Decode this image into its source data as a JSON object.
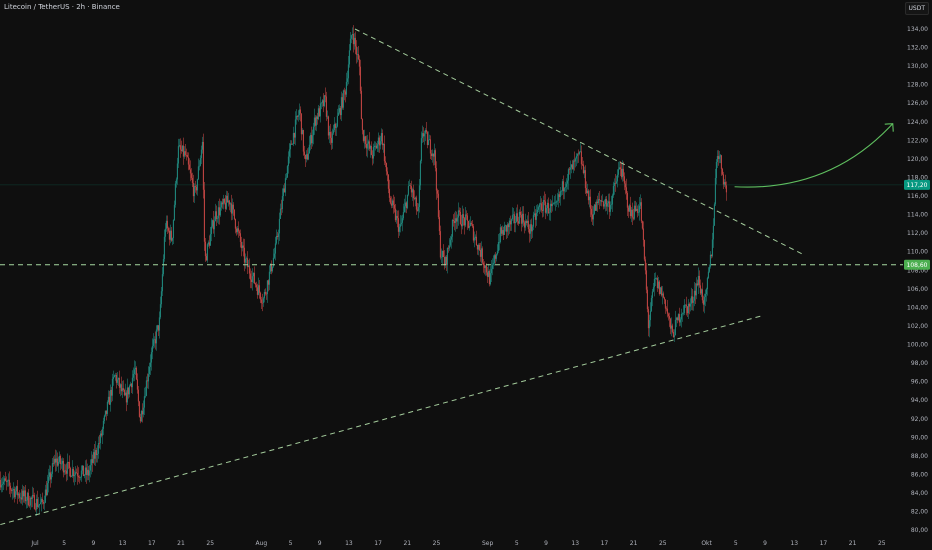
{
  "header": {
    "title": "Litecoin / TetherUS · 2h · Binance",
    "currency": "USDT"
  },
  "chart_data": {
    "type": "candlestick",
    "symbol": "Litecoin / TetherUS",
    "interval": "2h",
    "exchange": "Binance",
    "ylim": [
      79,
      135
    ],
    "y_ticks": [
      "80,00",
      "82,00",
      "84,00",
      "86,00",
      "88,00",
      "90,00",
      "92,00",
      "94,00",
      "96,00",
      "98,00",
      "100,00",
      "102,00",
      "104,00",
      "106,00",
      "108,00",
      "110,00",
      "112,00",
      "114,00",
      "116,00",
      "118,00",
      "120,00",
      "122,00",
      "124,00",
      "126,00",
      "128,00",
      "130,00",
      "132,00",
      "134,00"
    ],
    "x_ticks": [
      "Jul",
      "5",
      "9",
      "13",
      "17",
      "21",
      "25",
      "Aug",
      "5",
      "9",
      "13",
      "17",
      "21",
      "25",
      "Sep",
      "5",
      "9",
      "13",
      "17",
      "21",
      "25",
      "Okt",
      "5",
      "9",
      "13",
      "17",
      "21",
      "25"
    ],
    "grid": false,
    "colors": {
      "up": "#26a69a",
      "down": "#ef5350",
      "background": "#0f0f0f",
      "last_price": "#089981",
      "level": "#4caf50",
      "arrow": "#5fbf5f"
    },
    "last_price": {
      "value": 117.2,
      "label": "117,20"
    },
    "price_path": [
      {
        "t": "Jun 26 06:00",
        "p": 85.4
      },
      {
        "t": "Jun 28 22:00",
        "p": 83.8
      },
      {
        "t": "Jul 1 22:00",
        "p": 82.7
      },
      {
        "t": "Jul 3 18:00",
        "p": 87.6
      },
      {
        "t": "Jul 5 18:00",
        "p": 86.5
      },
      {
        "t": "Jul 8 06:00",
        "p": 86.0
      },
      {
        "t": "Jul 9 22:00",
        "p": 89.7
      },
      {
        "t": "Jul 11 22:00",
        "p": 96.7
      },
      {
        "t": "Jul 13 08:00",
        "p": 94.0
      },
      {
        "t": "Jul 14 16:00",
        "p": 97.3
      },
      {
        "t": "Jul 15 10:00",
        "p": 91.9
      },
      {
        "t": "Jul 16 18:00",
        "p": 98.3
      },
      {
        "t": "Jul 18 02:00",
        "p": 102.6
      },
      {
        "t": "Jul 18 20:00",
        "p": 112.9
      },
      {
        "t": "Jul 19 18:00",
        "p": 111.3
      },
      {
        "t": "Jul 20 14:00",
        "p": 121.0
      },
      {
        "t": "Jul 21 14:00",
        "p": 120.4
      },
      {
        "t": "Jul 22 22:00",
        "p": 116.0
      },
      {
        "t": "Jul 23 22:00",
        "p": 122.0
      },
      {
        "t": "Jul 24 06:00",
        "p": 109.0
      },
      {
        "t": "Jul 25 16:00",
        "p": 114.0
      },
      {
        "t": "Jul 27 16:00",
        "p": 115.6
      },
      {
        "t": "Jul 29 18:00",
        "p": 109.0
      },
      {
        "t": "Aug 1 06:00",
        "p": 104.8
      },
      {
        "t": "Aug 2 22:00",
        "p": 110.2
      },
      {
        "t": "Aug 4 06:00",
        "p": 117.7
      },
      {
        "t": "Aug 5 04:00",
        "p": 122.0
      },
      {
        "t": "Aug 6 06:00",
        "p": 125.3
      },
      {
        "t": "Aug 7 00:00",
        "p": 119.3
      },
      {
        "t": "Aug 8 08:00",
        "p": 124.2
      },
      {
        "t": "Aug 9 18:00",
        "p": 126.3
      },
      {
        "t": "Aug 10 10:00",
        "p": 121.5
      },
      {
        "t": "Aug 12 12:00",
        "p": 127.4
      },
      {
        "t": "Aug 13 10:00",
        "p": 133.9
      },
      {
        "t": "Aug 14 12:00",
        "p": 129.6
      },
      {
        "t": "Aug 14 18:00",
        "p": 123.0
      },
      {
        "t": "Aug 16 04:00",
        "p": 120.4
      },
      {
        "t": "Aug 17 12:00",
        "p": 122.6
      },
      {
        "t": "Aug 18 14:00",
        "p": 115.6
      },
      {
        "t": "Aug 20 00:00",
        "p": 112.3
      },
      {
        "t": "Aug 21 08:00",
        "p": 117.2
      },
      {
        "t": "Aug 22 12:00",
        "p": 114.0
      },
      {
        "t": "Aug 23 00:00",
        "p": 123.1
      },
      {
        "t": "Aug 24 18:00",
        "p": 120.4
      },
      {
        "t": "Aug 25 12:00",
        "p": 110.2
      },
      {
        "t": "Aug 26 04:00",
        "p": 108.6
      },
      {
        "t": "Aug 27 12:00",
        "p": 114.0
      },
      {
        "t": "Aug 29 14:00",
        "p": 112.9
      },
      {
        "t": "Aug 30 22:00",
        "p": 110.2
      },
      {
        "t": "Sep 1 08:00",
        "p": 106.9
      },
      {
        "t": "Sep 2 16:00",
        "p": 111.8
      },
      {
        "t": "Sep 5 10:00",
        "p": 114.0
      },
      {
        "t": "Sep 6 20:00",
        "p": 112.3
      },
      {
        "t": "Sep 8 04:00",
        "p": 115.0
      },
      {
        "t": "Sep 10 06:00",
        "p": 114.5
      },
      {
        "t": "Sep 11 14:00",
        "p": 117.7
      },
      {
        "t": "Sep 13 16:00",
        "p": 120.4
      },
      {
        "t": "Sep 15 06:00",
        "p": 114.0
      },
      {
        "t": "Sep 16 10:00",
        "p": 115.6
      },
      {
        "t": "Sep 17 18:00",
        "p": 115.0
      },
      {
        "t": "Sep 19 04:00",
        "p": 119.3
      },
      {
        "t": "Sep 20 12:00",
        "p": 114.0
      },
      {
        "t": "Sep 21 22:00",
        "p": 115.0
      },
      {
        "t": "Sep 22 14:00",
        "p": 108.0
      },
      {
        "t": "Sep 23 00:00",
        "p": 102.0
      },
      {
        "t": "Sep 23 22:00",
        "p": 107.0
      },
      {
        "t": "Sep 25 06:00",
        "p": 104.8
      },
      {
        "t": "Sep 26 06:00",
        "p": 101.0
      },
      {
        "t": "Sep 27 14:00",
        "p": 103.7
      },
      {
        "t": "Sep 28 18:00",
        "p": 104.2
      },
      {
        "t": "Sep 29 20:00",
        "p": 107.0
      },
      {
        "t": "Sep 30 18:00",
        "p": 104.2
      },
      {
        "t": "Okt 1 18:00",
        "p": 110.7
      },
      {
        "t": "Okt 2 10:00",
        "p": 121.0
      },
      {
        "t": "Okt 2 20:00",
        "p": 120.0
      },
      {
        "t": "Okt 3 18:00",
        "p": 116.1
      }
    ],
    "drawings": {
      "horizontal_level": {
        "value": 108.6,
        "label": "108,60"
      },
      "descending_trendline": [
        {
          "t": "Aug 13 20:00",
          "p": 134.0
        },
        {
          "t": "Okt 14 12:00",
          "p": 109.6
        }
      ],
      "ascending_trendline": [
        {
          "t": "Jun 26 06:00",
          "p": 80.6
        },
        {
          "t": "Okt 8 14:00",
          "p": 103.1
        }
      ],
      "projection_arrow": [
        {
          "t": "Okt 4 20:00",
          "p": 117.0
        },
        {
          "t": "Okt 26 12:00",
          "p": 123.8
        }
      ]
    }
  }
}
